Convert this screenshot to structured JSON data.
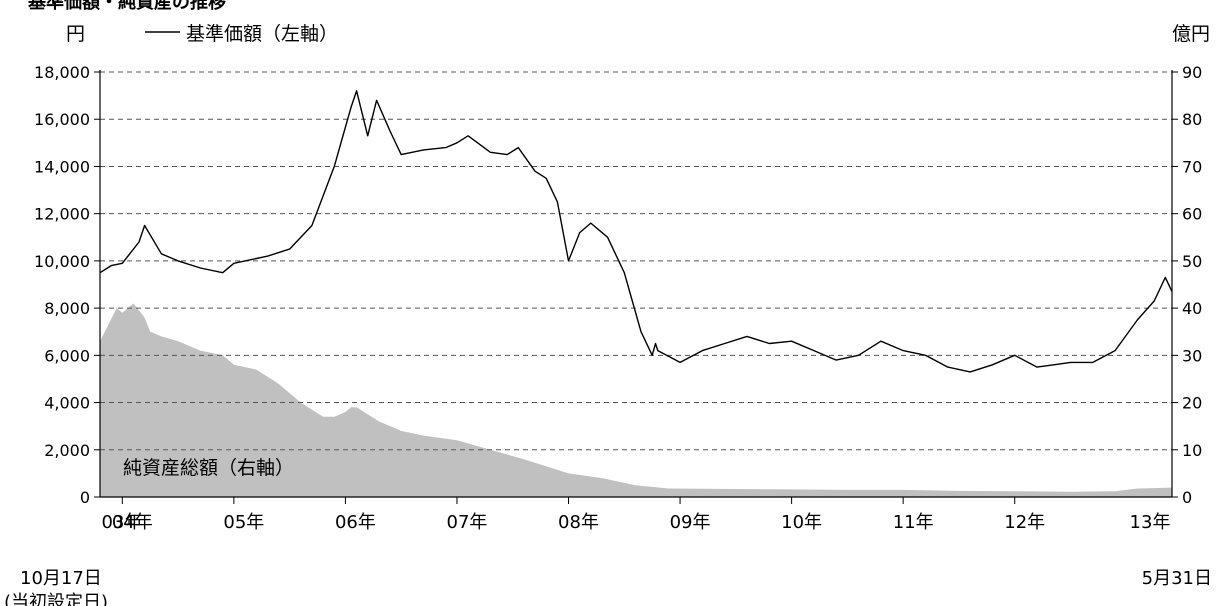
{
  "chart_data": {
    "type": "line",
    "title": "基準価額・純資産の推移",
    "left_unit": "円",
    "right_unit": "億円",
    "left_axis": {
      "ylim": [
        0,
        18000
      ],
      "ticks": [
        "0",
        "2,000",
        "4,000",
        "6,000",
        "8,000",
        "10,000",
        "12,000",
        "14,000",
        "16,000",
        "18,000"
      ]
    },
    "right_axis": {
      "ylim": [
        0,
        90
      ],
      "ticks": [
        "0",
        "10",
        "20",
        "30",
        "40",
        "50",
        "60",
        "70",
        "80",
        "90"
      ]
    },
    "x_ticks": [
      "03年",
      "04年",
      "05年",
      "06年",
      "07年",
      "08年",
      "09年",
      "10年",
      "11年",
      "12年",
      "13年"
    ],
    "start_note": [
      "10月17日",
      "(当初設定日)"
    ],
    "end_note": "5月31日",
    "grid": "dashed horizontal",
    "series": [
      {
        "name": "基準価額（左軸）",
        "axis": "left",
        "style": "line",
        "color": "#000000",
        "x": [
          2003.8,
          2003.9,
          2004.0,
          2004.15,
          2004.2,
          2004.35,
          2004.5,
          2004.7,
          2004.9,
          2005.0,
          2005.3,
          2005.5,
          2005.7,
          2005.9,
          2006.05,
          2006.1,
          2006.2,
          2006.28,
          2006.4,
          2006.5,
          2006.7,
          2006.9,
          2007.0,
          2007.1,
          2007.3,
          2007.45,
          2007.55,
          2007.7,
          2007.8,
          2007.9,
          2008.0,
          2008.1,
          2008.2,
          2008.35,
          2008.5,
          2008.65,
          2008.75,
          2008.78,
          2008.8,
          2009.0,
          2009.2,
          2009.4,
          2009.6,
          2009.8,
          2010.0,
          2010.2,
          2010.4,
          2010.6,
          2010.8,
          2011.0,
          2011.2,
          2011.4,
          2011.6,
          2011.8,
          2012.0,
          2012.2,
          2012.35,
          2012.5,
          2012.7,
          2012.9,
          2013.1,
          2013.25,
          2013.35,
          2013.41
        ],
        "values": [
          9500,
          9800,
          9900,
          10800,
          11500,
          10300,
          10000,
          9700,
          9500,
          9900,
          10200,
          10500,
          11500,
          14000,
          16500,
          17200,
          15300,
          16800,
          15500,
          14500,
          14700,
          14800,
          15000,
          15300,
          14600,
          14500,
          14800,
          13800,
          13500,
          12500,
          10000,
          11200,
          11600,
          11000,
          9500,
          7000,
          6000,
          6500,
          6200,
          5700,
          6200,
          6500,
          6800,
          6500,
          6600,
          6200,
          5800,
          6000,
          6600,
          6200,
          6000,
          5500,
          5300,
          5600,
          6000,
          5500,
          5600,
          5700,
          5700,
          6200,
          7500,
          8300,
          9300,
          8700
        ]
      },
      {
        "name": "純資産総額（右軸）",
        "axis": "right",
        "style": "area",
        "color": "#c0c0c0",
        "x": [
          2003.8,
          2003.95,
          2004.0,
          2004.1,
          2004.2,
          2004.25,
          2004.35,
          2004.5,
          2004.7,
          2004.9,
          2005.0,
          2005.2,
          2005.4,
          2005.6,
          2005.8,
          2005.9,
          2006.0,
          2006.05,
          2006.1,
          2006.3,
          2006.5,
          2006.7,
          2007.0,
          2007.3,
          2007.6,
          2008.0,
          2008.3,
          2008.6,
          2008.9,
          2009.5,
          2010.0,
          2010.5,
          2011.0,
          2011.5,
          2012.0,
          2012.5,
          2012.9,
          2013.1,
          2013.41
        ],
        "values": [
          33,
          40,
          39,
          41,
          38,
          35,
          34,
          33,
          31,
          30,
          28,
          27,
          24,
          20,
          17,
          17,
          18,
          19,
          19,
          16,
          14,
          13,
          12,
          10,
          8,
          5,
          4,
          2.5,
          1.8,
          1.7,
          1.6,
          1.5,
          1.5,
          1.3,
          1.2,
          1.1,
          1.2,
          1.8,
          2.0
        ]
      }
    ],
    "area_label": "純資産総額（右軸）",
    "legend": "top-left",
    "legend_text": "基準価額（左軸）"
  }
}
